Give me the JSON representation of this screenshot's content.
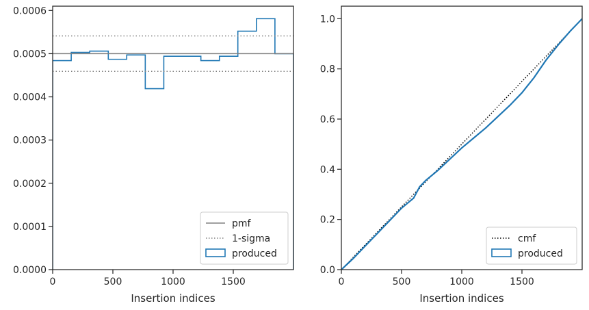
{
  "chart_data": [
    {
      "type": "histogram-step",
      "xlabel": "Insertion indices",
      "ylabel": "",
      "xlim": [
        0,
        2000
      ],
      "ylim": [
        0,
        0.00061
      ],
      "xticks": [
        {
          "value": 0,
          "label": "0"
        },
        {
          "value": 500,
          "label": "500"
        },
        {
          "value": 1000,
          "label": "1000"
        },
        {
          "value": 1500,
          "label": "1500"
        }
      ],
      "yticks": [
        {
          "value": 0,
          "label": "0.0000"
        },
        {
          "value": 0.0001,
          "label": "0.0001"
        },
        {
          "value": 0.0002,
          "label": "0.0002"
        },
        {
          "value": 0.0003,
          "label": "0.0003"
        },
        {
          "value": 0.0004,
          "label": "0.0004"
        },
        {
          "value": 0.0005,
          "label": "0.0005"
        },
        {
          "value": 0.0006,
          "label": "0.0006"
        }
      ],
      "bin_edges": [
        0,
        154,
        308,
        462,
        615,
        769,
        923,
        1077,
        1231,
        1385,
        1538,
        1692,
        1846,
        2000
      ],
      "series": [
        {
          "name": "produced",
          "kind": "step",
          "color": "#1f77b4",
          "values": [
            0.000484,
            0.000503,
            0.000506,
            0.000487,
            0.000497,
            0.000419,
            0.000494,
            0.000494,
            0.000484,
            0.000494,
            0.000552,
            0.000581,
            0.0005
          ]
        },
        {
          "name": "pmf",
          "kind": "hline",
          "color": "#808080",
          "y": 0.0005
        },
        {
          "name": "1-sigma",
          "kind": "hline-dotted",
          "color": "#808080",
          "y": [
            0.000459,
            0.000541
          ]
        }
      ],
      "legend": {
        "placement": "lower-right",
        "entries": [
          {
            "label": "pmf",
            "marker": "solid-line",
            "color": "#808080"
          },
          {
            "label": "1-sigma",
            "marker": "dotted-line",
            "color": "#808080"
          },
          {
            "label": "produced",
            "marker": "box",
            "color": "#1f77b4"
          }
        ]
      }
    },
    {
      "type": "line",
      "xlabel": "Insertion indices",
      "ylabel": "",
      "xlim": [
        0,
        2000
      ],
      "ylim": [
        0,
        1.05
      ],
      "xticks": [
        {
          "value": 0,
          "label": "0"
        },
        {
          "value": 500,
          "label": "500"
        },
        {
          "value": 1000,
          "label": "1000"
        },
        {
          "value": 1500,
          "label": "1500"
        }
      ],
      "yticks": [
        {
          "value": 0,
          "label": "0.0"
        },
        {
          "value": 0.2,
          "label": "0.2"
        },
        {
          "value": 0.4,
          "label": "0.4"
        },
        {
          "value": 0.6,
          "label": "0.6"
        },
        {
          "value": 0.8,
          "label": "0.8"
        },
        {
          "value": 1.0,
          "label": "1.0"
        }
      ],
      "series": [
        {
          "name": "cmf",
          "kind": "line-dotted",
          "color": "#000000",
          "x": [
            0,
            2000
          ],
          "y": [
            0,
            1.0
          ]
        },
        {
          "name": "produced",
          "kind": "line",
          "color": "#1f77b4",
          "x": [
            0,
            100,
            200,
            300,
            400,
            500,
            550,
            600,
            650,
            700,
            800,
            900,
            1000,
            1100,
            1200,
            1300,
            1400,
            1500,
            1600,
            1700,
            1800,
            1900,
            2000
          ],
          "y": [
            0,
            0.045,
            0.095,
            0.145,
            0.195,
            0.245,
            0.265,
            0.285,
            0.33,
            0.355,
            0.395,
            0.44,
            0.485,
            0.525,
            0.565,
            0.61,
            0.655,
            0.705,
            0.765,
            0.835,
            0.895,
            0.95,
            1.0
          ]
        }
      ],
      "legend": {
        "placement": "lower-right",
        "entries": [
          {
            "label": "cmf",
            "marker": "dotted-line",
            "color": "#000000"
          },
          {
            "label": "produced",
            "marker": "box",
            "color": "#1f77b4"
          }
        ]
      }
    }
  ]
}
